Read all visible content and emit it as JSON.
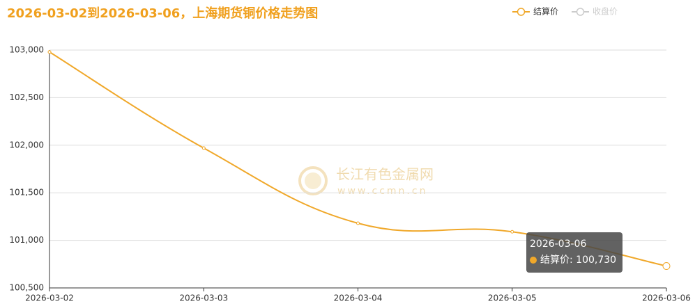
{
  "chart_data": {
    "type": "line",
    "title": "2026-03-02到2026-03-06，上海期货铜价格走势图",
    "categories": [
      "2026-03-02",
      "2026-03-03",
      "2026-03-04",
      "2026-03-05",
      "2026-03-06"
    ],
    "series": [
      {
        "name": "结算价",
        "color": "#f0a82a",
        "values": [
          102980,
          101970,
          101180,
          101090,
          100730
        ]
      },
      {
        "name": "收盘价",
        "color": "#cccccc",
        "hidden": true,
        "values": [
          null,
          null,
          null,
          null,
          null
        ]
      }
    ],
    "ylim": [
      100500,
      103000
    ],
    "yticks": [
      {
        "value": 100500,
        "label": "100,500"
      },
      {
        "value": 101000,
        "label": "101,000"
      },
      {
        "value": 101500,
        "label": "101,500"
      },
      {
        "value": 102000,
        "label": "102,000"
      },
      {
        "value": 102500,
        "label": "102,500"
      },
      {
        "value": 103000,
        "label": "103,000"
      }
    ],
    "grid": true,
    "legend": "top-right",
    "smooth": true,
    "tooltip": {
      "title": "2026-03-06",
      "text": "结算价: 100,730"
    },
    "watermark": {
      "name": "长江有色金属网",
      "url": "www.ccmn.cn"
    }
  }
}
